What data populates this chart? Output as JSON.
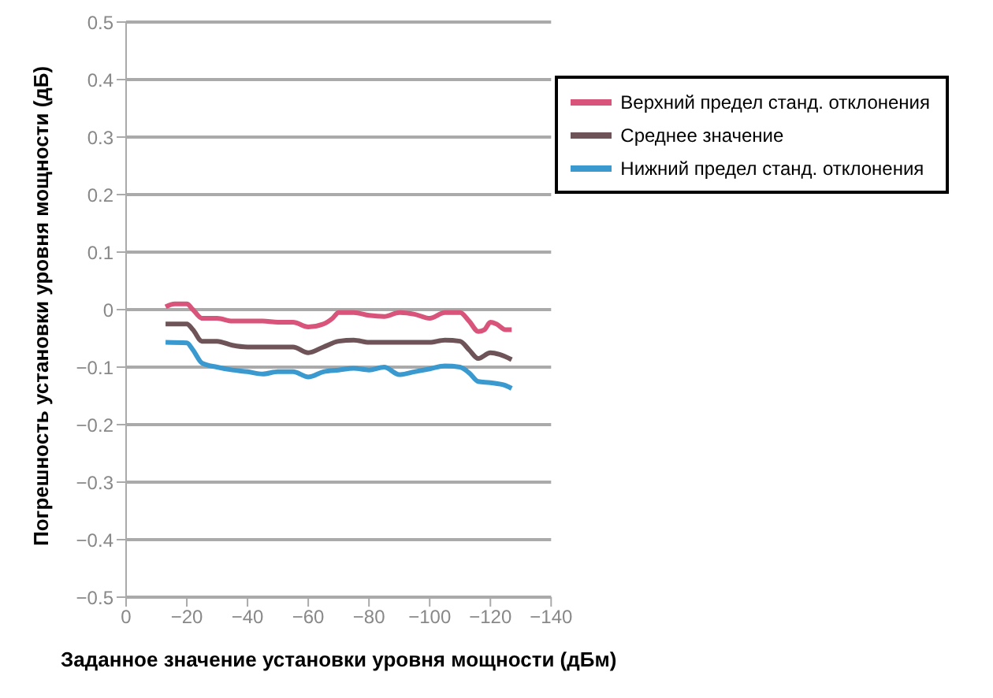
{
  "chart_data": {
    "type": "line",
    "xlabel": "Заданное значение установки уровня мощности (дБм)",
    "ylabel": "Погрешность установки уровня мощности (дБ)",
    "xlim": [
      0,
      -140
    ],
    "xticks": [
      0,
      {
        "value": -20,
        "label": "−20"
      },
      {
        "value": -40,
        "label": "−40"
      },
      {
        "value": -60,
        "label": "−60"
      },
      {
        "value": -80,
        "label": "−80"
      },
      {
        "value": -100,
        "label": "−100"
      },
      {
        "value": -120,
        "label": "−120"
      },
      {
        "value": -140,
        "label": "−140"
      }
    ],
    "ylim": [
      -0.5,
      0.5
    ],
    "yticks": [
      {
        "value": -0.5,
        "label": "−0.5"
      },
      {
        "value": -0.4,
        "label": "−0.4"
      },
      {
        "value": -0.3,
        "label": "−0.3"
      },
      {
        "value": -0.2,
        "label": "−0.2"
      },
      {
        "value": -0.1,
        "label": "−0.1"
      },
      0,
      0.1,
      0.2,
      0.3,
      0.4,
      0.5
    ],
    "grid": "y",
    "legend": "top right",
    "marker": "none",
    "line_style": "solid",
    "series": [
      {
        "name": "Верхний предел станд. отклонения",
        "color": "#d9547a",
        "x": [
          -13,
          -16,
          -20,
          -22,
          -25,
          -30,
          -35,
          -40,
          -45,
          -50,
          -55,
          -60,
          -65,
          -68,
          -70,
          -75,
          -80,
          -85,
          -90,
          -95,
          -100,
          -105,
          -110,
          -113,
          -116,
          -118,
          -120,
          -122,
          -125,
          -127
        ],
        "values": [
          0.005,
          0.01,
          0.01,
          0.0,
          -0.015,
          -0.015,
          -0.02,
          -0.02,
          -0.02,
          -0.022,
          -0.022,
          -0.03,
          -0.025,
          -0.015,
          -0.005,
          -0.005,
          -0.01,
          -0.012,
          -0.005,
          -0.008,
          -0.015,
          -0.005,
          -0.005,
          -0.02,
          -0.038,
          -0.035,
          -0.022,
          -0.025,
          -0.035,
          -0.035
        ]
      },
      {
        "name": "Среднее значение",
        "color": "#6e5458",
        "x": [
          -13,
          -20,
          -22,
          -25,
          -30,
          -35,
          -40,
          -50,
          -55,
          -60,
          -65,
          -70,
          -75,
          -80,
          -90,
          -100,
          -105,
          -110,
          -113,
          -116,
          -120,
          -123,
          -127
        ],
        "values": [
          -0.025,
          -0.025,
          -0.035,
          -0.055,
          -0.055,
          -0.062,
          -0.065,
          -0.065,
          -0.065,
          -0.075,
          -0.065,
          -0.055,
          -0.053,
          -0.057,
          -0.057,
          -0.057,
          -0.053,
          -0.055,
          -0.07,
          -0.085,
          -0.075,
          -0.078,
          -0.087
        ]
      },
      {
        "name": "Нижний предел станд. отклонения",
        "color": "#3a9ad0",
        "x": [
          -13,
          -20,
          -22,
          -25,
          -30,
          -35,
          -40,
          -45,
          -50,
          -55,
          -60,
          -65,
          -70,
          -75,
          -80,
          -85,
          -90,
          -95,
          -100,
          -105,
          -110,
          -113,
          -116,
          -120,
          -125,
          -127
        ],
        "values": [
          -0.057,
          -0.058,
          -0.07,
          -0.093,
          -0.1,
          -0.105,
          -0.108,
          -0.112,
          -0.108,
          -0.108,
          -0.117,
          -0.108,
          -0.105,
          -0.102,
          -0.105,
          -0.1,
          -0.113,
          -0.108,
          -0.103,
          -0.098,
          -0.1,
          -0.11,
          -0.125,
          -0.127,
          -0.132,
          -0.137
        ]
      }
    ]
  }
}
